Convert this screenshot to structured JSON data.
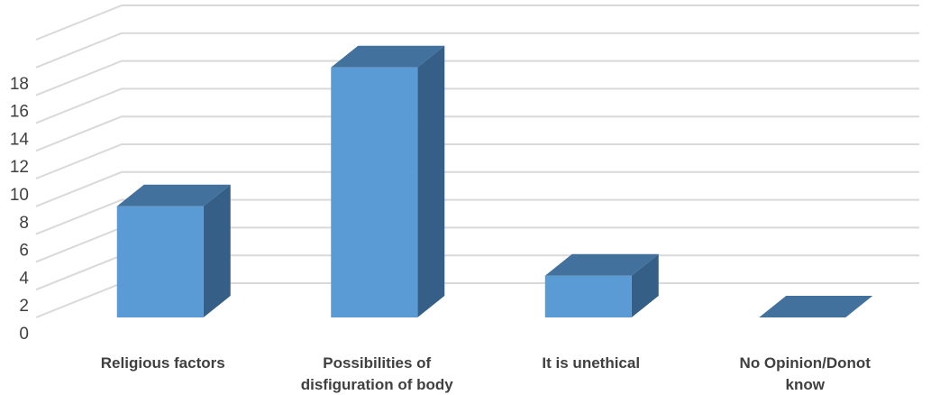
{
  "chart_data": {
    "type": "bar",
    "style": "3d-column",
    "categories": [
      [
        "Religious factors"
      ],
      [
        "Possibilities of",
        "disfiguration of body"
      ],
      [
        "It is unethical"
      ],
      [
        "No Opinion/Donot",
        "know"
      ]
    ],
    "values": [
      8,
      18,
      3,
      0
    ],
    "yticks": [
      0,
      2,
      4,
      6,
      8,
      10,
      12,
      14,
      16,
      18
    ],
    "ylim": [
      0,
      20
    ],
    "grid": true,
    "legend": "none",
    "colors": {
      "front": "#5b9bd5",
      "top": "#41719c",
      "side": "#355f86",
      "grid": "#d9d9d9",
      "text": "#404040"
    }
  }
}
